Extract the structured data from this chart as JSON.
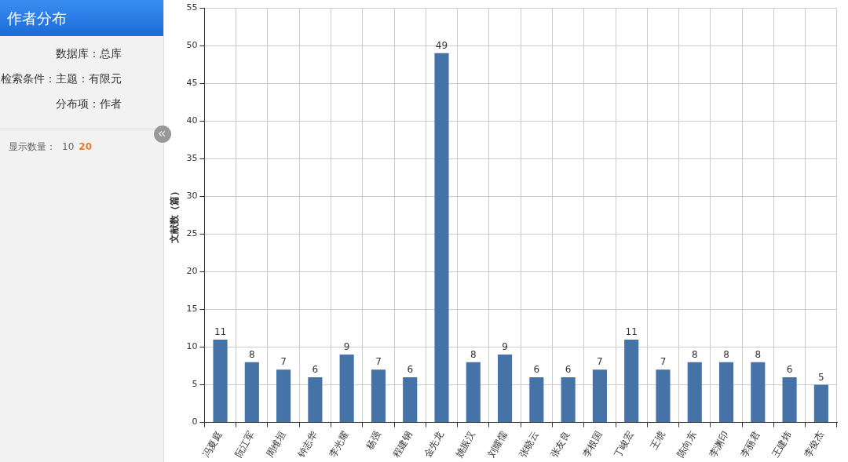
{
  "chart_data": {
    "type": "bar",
    "title": "作者分布",
    "annotations": [
      "数据库：总库",
      "检索条件：主题：有限元",
      "分布项：作者",
      "显示数量：",
      "10",
      "20"
    ],
    "ylabel": "文献数（篇）",
    "categories": [
      "冯夏庭",
      "阮江军",
      "周维垣",
      "钟志华",
      "李光耀",
      "杨强",
      "程建钢",
      "金先龙",
      "姚振汉",
      "刘耀儒",
      "张晓云",
      "张友良",
      "李根国",
      "丁峻宏",
      "王琥",
      "陈向东",
      "李渊印",
      "李丽君",
      "王建炜",
      "李俊杰"
    ],
    "values": [
      11,
      8,
      7,
      6,
      9,
      7,
      6,
      49,
      8,
      9,
      6,
      6,
      7,
      11,
      7,
      8,
      8,
      8,
      6,
      5
    ],
    "color": "#4572a7",
    "ylim": [
      0,
      55
    ],
    "yticks": [
      0,
      5,
      10,
      15,
      20,
      25,
      30,
      35,
      40,
      45,
      50,
      55
    ],
    "grid": true,
    "data_labels": true
  }
}
